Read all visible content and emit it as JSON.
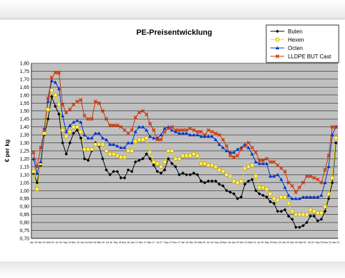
{
  "chart_data": {
    "type": "line",
    "title": "PE-Preisentwicklung",
    "xlabel": "",
    "ylabel": "€ per kg",
    "ylim": [
      0.7,
      1.8
    ],
    "yticks": [
      "0,70",
      "0,75",
      "0,80",
      "0,85",
      "0,90",
      "0,95",
      "1,00",
      "1,05",
      "1,10",
      "1,15",
      "1,20",
      "1,25",
      "1,30",
      "1,35",
      "1,40",
      "1,45",
      "1,50",
      "1,55",
      "1,60",
      "1,65",
      "1,70",
      "1,75",
      "1,80"
    ],
    "xticks": [
      "Jan 15",
      "Mrz 15",
      "Mai 15",
      "Jul 15",
      "Sep 15",
      "Nov 15",
      "Jan 16",
      "Mrz 16",
      "Mai 16",
      "Jul 16",
      "Sep 16",
      "Nov 16",
      "Jan 17",
      "Mrz 17",
      "Mai 17",
      "Jul 17",
      "Sep 17",
      "Nov 17",
      "Jan 18",
      "Mrz 18",
      "Mai 18",
      "Jul 18",
      "Sep 18",
      "Nov 18",
      "Jan 19",
      "Mrz 19",
      "Mai 19",
      "Jul 19",
      "Sep 19",
      "Nov 19",
      "Jan 20",
      "Mrz 20",
      "Mai 20",
      "Jul 20",
      "Sep 20",
      "Nov 20",
      "Jan 21"
    ],
    "grid": true,
    "legend_position": "top-right",
    "series": [
      {
        "name": "Buten",
        "color": "#000000",
        "marker": "diamond",
        "values": [
          1.11,
          1.05,
          1.16,
          1.35,
          1.45,
          1.59,
          1.53,
          1.48,
          1.3,
          1.23,
          1.3,
          1.36,
          1.38,
          1.33,
          1.2,
          1.19,
          1.25,
          1.3,
          1.28,
          1.2,
          1.13,
          1.1,
          1.12,
          1.12,
          1.08,
          1.08,
          1.13,
          1.12,
          1.18,
          1.19,
          1.2,
          1.23,
          1.2,
          1.16,
          1.12,
          1.11,
          1.13,
          1.2,
          1.17,
          1.15,
          1.1,
          1.11,
          1.1,
          1.1,
          1.11,
          1.1,
          1.06,
          1.05,
          1.06,
          1.06,
          1.06,
          1.04,
          1.03,
          1.0,
          0.99,
          0.98,
          0.95,
          0.96,
          1.04,
          1.06,
          1.07,
          1.0,
          0.98,
          0.97,
          0.96,
          0.93,
          0.92,
          0.87,
          0.87,
          0.88,
          0.84,
          0.82,
          0.77,
          0.77,
          0.78,
          0.8,
          0.84,
          0.84,
          0.81,
          0.82,
          0.87,
          0.95,
          1.05,
          1.3
        ]
      },
      {
        "name": "Hexen",
        "color": "#e6e600",
        "marker": "square",
        "values": [
          1.12,
          1.01,
          1.17,
          1.36,
          1.51,
          1.63,
          1.6,
          1.54,
          1.38,
          1.34,
          1.37,
          1.4,
          1.4,
          1.37,
          1.26,
          1.26,
          1.26,
          1.29,
          1.29,
          1.29,
          1.25,
          1.23,
          1.23,
          1.22,
          1.21,
          1.21,
          1.25,
          1.25,
          1.31,
          1.32,
          1.32,
          1.33,
          1.24,
          1.18,
          1.17,
          1.15,
          1.18,
          1.25,
          1.25,
          1.2,
          1.2,
          1.22,
          1.22,
          1.22,
          1.23,
          1.22,
          1.17,
          1.17,
          1.16,
          1.16,
          1.15,
          1.13,
          1.12,
          1.1,
          1.09,
          1.06,
          1.05,
          1.06,
          1.14,
          1.15,
          1.16,
          1.09,
          1.02,
          1.02,
          1.01,
          0.98,
          0.95,
          0.94,
          0.96,
          0.96,
          0.92,
          0.87,
          0.85,
          0.85,
          0.85,
          0.85,
          0.88,
          0.87,
          0.86,
          0.86,
          0.9,
          0.98,
          1.08,
          1.33
        ]
      },
      {
        "name": "Octen",
        "color": "#0033cc",
        "marker": "triangle",
        "values": [
          1.2,
          1.11,
          1.18,
          1.39,
          1.56,
          1.69,
          1.68,
          1.64,
          1.47,
          1.37,
          1.41,
          1.43,
          1.44,
          1.43,
          1.35,
          1.33,
          1.33,
          1.36,
          1.36,
          1.33,
          1.32,
          1.29,
          1.29,
          1.28,
          1.27,
          1.27,
          1.3,
          1.3,
          1.37,
          1.4,
          1.4,
          1.38,
          1.34,
          1.33,
          1.33,
          1.35,
          1.39,
          1.4,
          1.38,
          1.37,
          1.36,
          1.36,
          1.36,
          1.35,
          1.35,
          1.35,
          1.34,
          1.34,
          1.34,
          1.34,
          1.32,
          1.29,
          1.27,
          1.25,
          1.24,
          1.24,
          1.26,
          1.27,
          1.29,
          1.27,
          1.23,
          1.18,
          1.17,
          1.17,
          1.17,
          1.09,
          1.09,
          1.1,
          1.07,
          1.02,
          0.97,
          0.95,
          0.95,
          0.95,
          0.96,
          0.96,
          0.96,
          0.96,
          0.96,
          0.97,
          1.05,
          1.15,
          1.35,
          1.4
        ]
      },
      {
        "name": "LLDPE BUT Cast",
        "color": "#cc3300",
        "marker": "x",
        "values": [
          1.24,
          1.15,
          1.27,
          1.38,
          1.58,
          1.71,
          1.74,
          1.74,
          1.54,
          1.49,
          1.51,
          1.54,
          1.56,
          1.57,
          1.47,
          1.45,
          1.45,
          1.56,
          1.55,
          1.5,
          1.45,
          1.41,
          1.41,
          1.41,
          1.4,
          1.38,
          1.36,
          1.38,
          1.46,
          1.49,
          1.5,
          1.48,
          1.42,
          1.38,
          1.32,
          1.32,
          1.37,
          1.39,
          1.4,
          1.38,
          1.38,
          1.38,
          1.38,
          1.39,
          1.38,
          1.37,
          1.37,
          1.35,
          1.38,
          1.37,
          1.36,
          1.35,
          1.32,
          1.28,
          1.22,
          1.21,
          1.22,
          1.26,
          1.28,
          1.3,
          1.27,
          1.24,
          1.19,
          1.19,
          1.2,
          1.18,
          1.18,
          1.16,
          1.14,
          1.12,
          1.05,
          1.03,
          0.99,
          1.02,
          1.05,
          1.09,
          1.09,
          1.08,
          1.07,
          1.05,
          1.13,
          1.22,
          1.4,
          1.4
        ]
      }
    ]
  }
}
